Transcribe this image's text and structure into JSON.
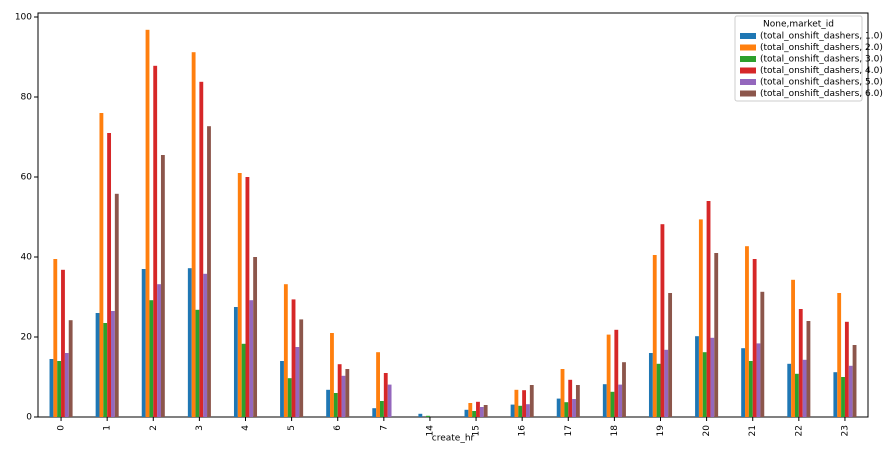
{
  "chart_data": {
    "type": "bar",
    "x_label": "create_hr",
    "legend_title": "None,market_id",
    "legend": "upper right",
    "categories": [
      "0",
      "1",
      "2",
      "3",
      "4",
      "5",
      "6",
      "7",
      "14",
      "15",
      "16",
      "17",
      "18",
      "19",
      "20",
      "21",
      "22",
      "23"
    ],
    "series": [
      {
        "name": "(total_onshift_dashers, 1.0)",
        "color": "#1f77b4",
        "values": [
          14.5,
          26,
          37,
          37.2,
          27.5,
          14,
          6.8,
          2.2,
          0.8,
          1.8,
          3.1,
          4.6,
          8.2,
          16,
          20.2,
          17.2,
          13.3,
          11.2
        ]
      },
      {
        "name": "(total_onshift_dashers, 2.0)",
        "color": "#ff7f0e",
        "values": [
          39.5,
          76,
          96.8,
          91.2,
          61,
          33.2,
          21,
          16.2,
          null,
          3.5,
          6.8,
          12,
          20.6,
          40.5,
          49.4,
          42.7,
          34.3,
          31
        ]
      },
      {
        "name": "(total_onshift_dashers, 3.0)",
        "color": "#2ca02c",
        "values": [
          14,
          23.5,
          29.2,
          26.8,
          18.3,
          9.7,
          6,
          4,
          0.3,
          1.5,
          2.8,
          3.7,
          6.3,
          13.3,
          16.2,
          14,
          10.8,
          10
        ]
      },
      {
        "name": "(total_onshift_dashers, 4.0)",
        "color": "#d62728",
        "values": [
          36.8,
          71,
          87.8,
          83.8,
          60,
          29.4,
          13.2,
          11,
          null,
          3.8,
          6.7,
          9.3,
          21.8,
          48.2,
          54,
          39.5,
          27,
          23.8
        ]
      },
      {
        "name": "(total_onshift_dashers, 5.0)",
        "color": "#9467bd",
        "values": [
          16,
          26.5,
          33.2,
          35.8,
          29.2,
          17.5,
          10.3,
          8.1,
          null,
          2.5,
          3.2,
          4.5,
          8.1,
          16.8,
          19.8,
          18.4,
          14.3,
          12.8
        ]
      },
      {
        "name": "(total_onshift_dashers, 6.0)",
        "color": "#8c564b",
        "values": [
          24.2,
          55.8,
          65.5,
          72.7,
          40,
          24.4,
          12,
          null,
          null,
          3,
          8,
          8,
          13.7,
          31,
          41,
          31.3,
          24,
          18
        ]
      }
    ],
    "ylim": [
      0,
      101
    ],
    "yticks": [
      0,
      20,
      40,
      60,
      80,
      100
    ]
  }
}
